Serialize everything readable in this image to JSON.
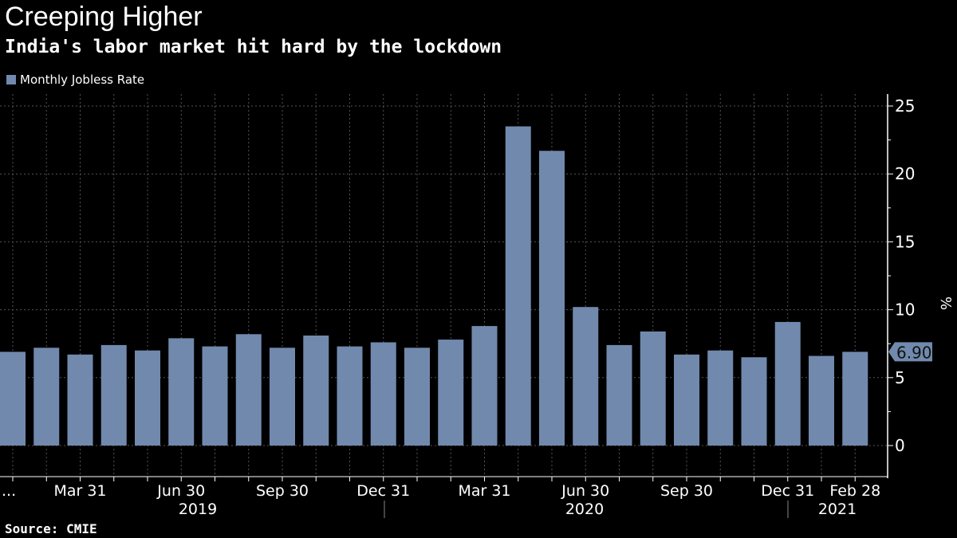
{
  "chart_data": {
    "type": "bar",
    "title": "Creeping Higher",
    "subtitle": "India's labor market hit hard by the lockdown",
    "legend": [
      "Monthly Jobless Rate"
    ],
    "ylabel": "%",
    "ylim": [
      0,
      25
    ],
    "yticks": [
      0,
      5,
      10,
      15,
      20,
      25
    ],
    "grid": true,
    "legend_position": "top-left",
    "last_value_label": "6.90",
    "bar_color": "#7189ad",
    "categories": [
      "2019-01",
      "2019-02",
      "2019-03",
      "2019-04",
      "2019-05",
      "2019-06",
      "2019-07",
      "2019-08",
      "2019-09",
      "2019-10",
      "2019-11",
      "2019-12",
      "2020-01",
      "2020-02",
      "2020-03",
      "2020-04",
      "2020-05",
      "2020-06",
      "2020-07",
      "2020-08",
      "2020-09",
      "2020-10",
      "2020-11",
      "2020-12",
      "2021-01",
      "2021-02"
    ],
    "series": [
      {
        "name": "Monthly Jobless Rate",
        "values": [
          6.9,
          7.2,
          6.7,
          7.4,
          7.0,
          7.9,
          7.3,
          8.2,
          7.2,
          8.1,
          7.3,
          7.6,
          7.2,
          7.8,
          8.8,
          23.5,
          21.7,
          10.2,
          7.4,
          8.4,
          6.7,
          7.0,
          6.5,
          9.1,
          6.6,
          6.9
        ]
      }
    ],
    "xtick_labels": [
      {
        "month_index": 0,
        "label": "..."
      },
      {
        "month_index": 2,
        "label": "Mar 31"
      },
      {
        "month_index": 5,
        "label": "Jun 30"
      },
      {
        "month_index": 8,
        "label": "Sep 30"
      },
      {
        "month_index": 11,
        "label": "Dec 31"
      },
      {
        "month_index": 14,
        "label": "Mar 31"
      },
      {
        "month_index": 17,
        "label": "Jun 30"
      },
      {
        "month_index": 20,
        "label": "Sep 30"
      },
      {
        "month_index": 23,
        "label": "Dec 31"
      },
      {
        "month_index": 25,
        "label": "Feb 28"
      }
    ],
    "year_labels": [
      "2019",
      "2020",
      "2021"
    ]
  },
  "source": "Source: CMIE"
}
